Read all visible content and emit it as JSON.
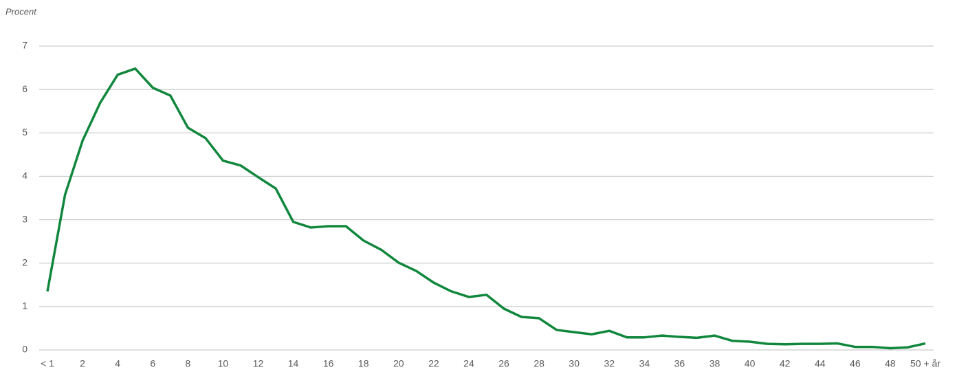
{
  "chart_data": {
    "type": "line",
    "ylabel": "Procent",
    "categories": [
      "< 1",
      null,
      "2",
      null,
      "4",
      null,
      "6",
      null,
      "8",
      null,
      "10",
      null,
      "12",
      null,
      "14",
      null,
      "16",
      null,
      "18",
      null,
      "20",
      null,
      "22",
      null,
      "24",
      null,
      "26",
      null,
      "28",
      null,
      "30",
      null,
      "32",
      null,
      "34",
      null,
      "36",
      null,
      "38",
      null,
      "40",
      null,
      "42",
      null,
      "44",
      null,
      "46",
      null,
      "48",
      null,
      "50 + år"
    ],
    "values": [
      1.35,
      3.57,
      4.82,
      5.69,
      6.34,
      6.48,
      6.04,
      5.86,
      5.12,
      4.88,
      4.36,
      4.25,
      3.98,
      3.72,
      2.95,
      2.82,
      2.85,
      2.85,
      2.52,
      2.31,
      2.01,
      1.82,
      1.55,
      1.35,
      1.22,
      1.27,
      0.95,
      0.76,
      0.73,
      0.46,
      0.41,
      0.36,
      0.44,
      0.29,
      0.29,
      0.33,
      0.3,
      0.28,
      0.33,
      0.21,
      0.19,
      0.14,
      0.13,
      0.14,
      0.14,
      0.15,
      0.07,
      0.07,
      0.04,
      0.06,
      0.15
    ],
    "color": "#11873d",
    "ylim": [
      0,
      7
    ],
    "yticks": [
      0,
      1,
      2,
      3,
      4,
      5,
      6,
      7
    ],
    "grid": true
  }
}
